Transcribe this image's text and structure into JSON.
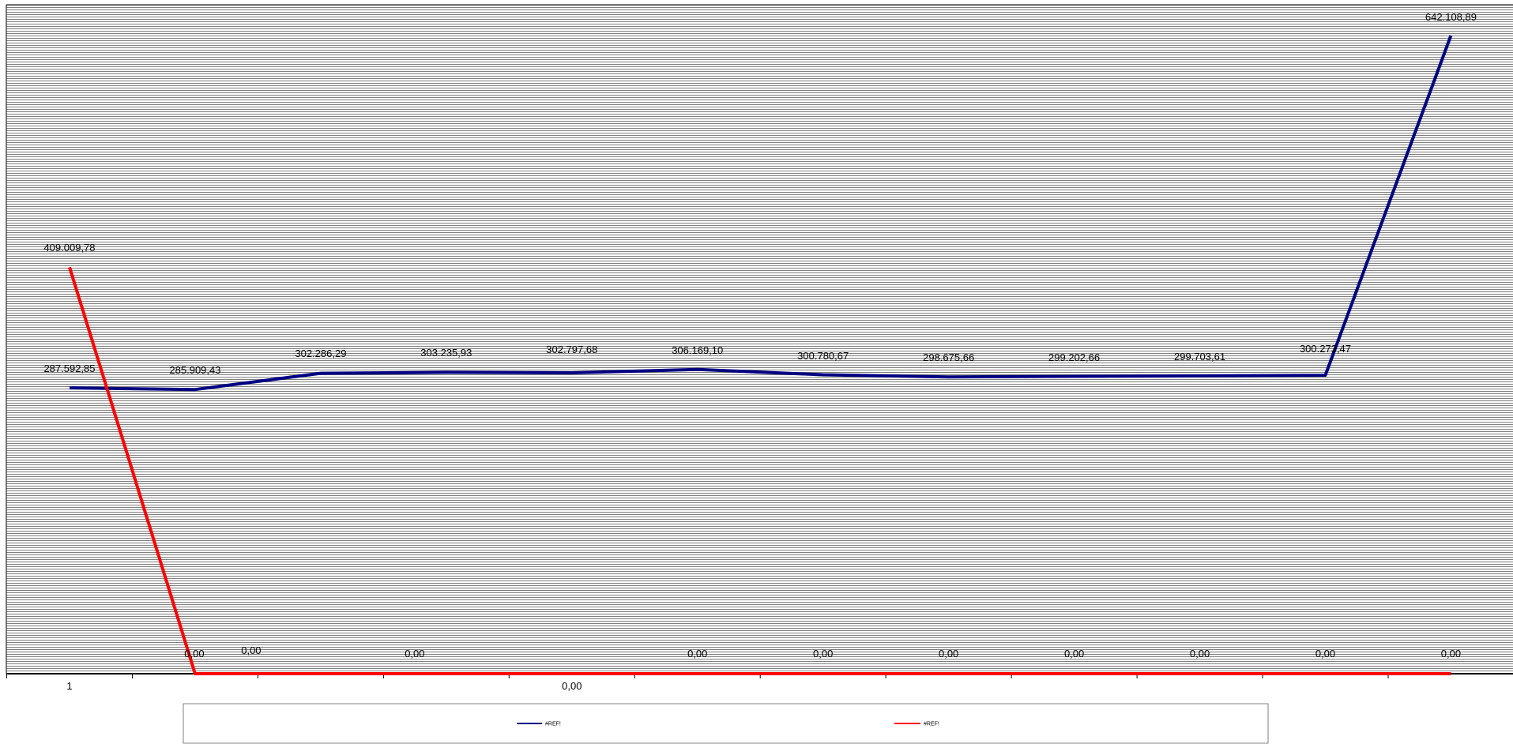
{
  "chart_data": {
    "type": "line",
    "categories": [
      "1",
      "",
      "",
      "",
      "",
      "",
      "",
      "",
      "",
      "",
      "",
      ""
    ],
    "tick_labels_shown": {
      "0": "1",
      "4": "0,00"
    },
    "ylim": [
      0,
      660000
    ],
    "grid": true,
    "legend_position": "bottom",
    "series": [
      {
        "name": "#REF!",
        "color": "#000080",
        "values": [
          287592.85,
          285909.43,
          302286.29,
          303235.93,
          302797.68,
          306169.1,
          300780.67,
          298675.66,
          299202.66,
          299703.61,
          300273.47,
          642108.89
        ],
        "labels": [
          "287.592,85",
          "285.909,43",
          "302.286,29",
          "303.235,93",
          "302.797,68",
          "306.169,10",
          "300.780,67",
          "298.675,66",
          "299.202,66",
          "299.703,61",
          "300.273,47",
          "642.108,89"
        ]
      },
      {
        "name": "#REF!",
        "color": "#ff0000",
        "values": [
          409009.78,
          0,
          0,
          0,
          0,
          0,
          0,
          0,
          0,
          0,
          0,
          0
        ],
        "labels": [
          "409.009,78",
          "0,00",
          "0,00",
          "0,00",
          "",
          "0,00",
          "0,00",
          "0,00",
          "0,00",
          "0,00",
          "0,00",
          "0,00"
        ]
      }
    ]
  }
}
